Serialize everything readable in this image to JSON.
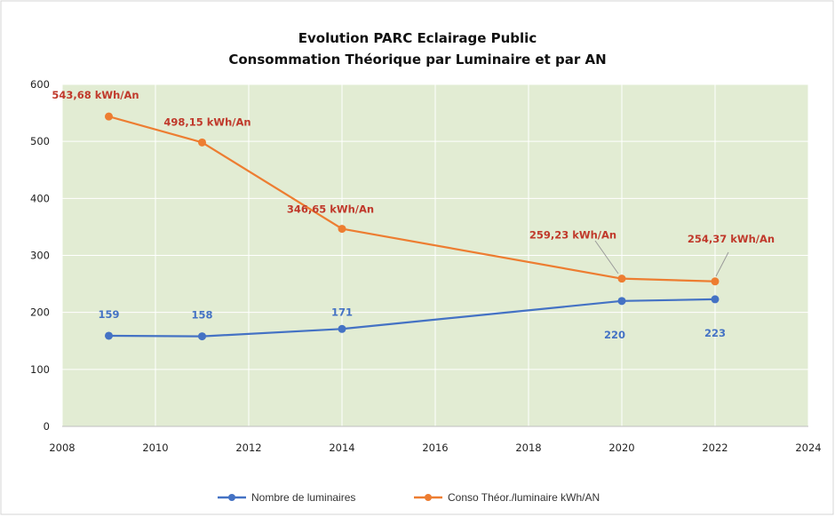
{
  "chart_data": {
    "type": "line",
    "title": "Evolution PARC Eclairage Public",
    "subtitle": "Consommation Théorique par Luminaire et par AN",
    "xlabel": "",
    "ylabel": "",
    "xlim": [
      2008,
      2024
    ],
    "ylim": [
      0,
      600
    ],
    "xticks": [
      "2008",
      "2010",
      "2012",
      "2014",
      "2016",
      "2018",
      "2020",
      "2022",
      "2024"
    ],
    "yticks": [
      "0",
      "100",
      "200",
      "300",
      "400",
      "500",
      "600"
    ],
    "grid": true,
    "legend_position": "bottom",
    "background_color": "#e2ecd3",
    "series": [
      {
        "name": "Nombre de luminaires",
        "color": "#4472c4",
        "x": [
          2009,
          2011,
          2014,
          2020,
          2022
        ],
        "values": [
          159,
          158,
          171,
          220,
          223
        ],
        "labels": [
          "159",
          "158",
          "171",
          "220",
          "223"
        ]
      },
      {
        "name": "Conso Théor./luminaire kWh/AN",
        "color": "#ed7d31",
        "label_color": "#c0392b",
        "x": [
          2009,
          2011,
          2014,
          2020,
          2022
        ],
        "values": [
          543.68,
          498.15,
          346.65,
          259.23,
          254.37
        ],
        "labels": [
          "543,68 kWh/An",
          "498,15 kWh/An",
          "346,65 kWh/An",
          "259,23 kWh/An",
          "254,37 kWh/An"
        ]
      }
    ]
  }
}
